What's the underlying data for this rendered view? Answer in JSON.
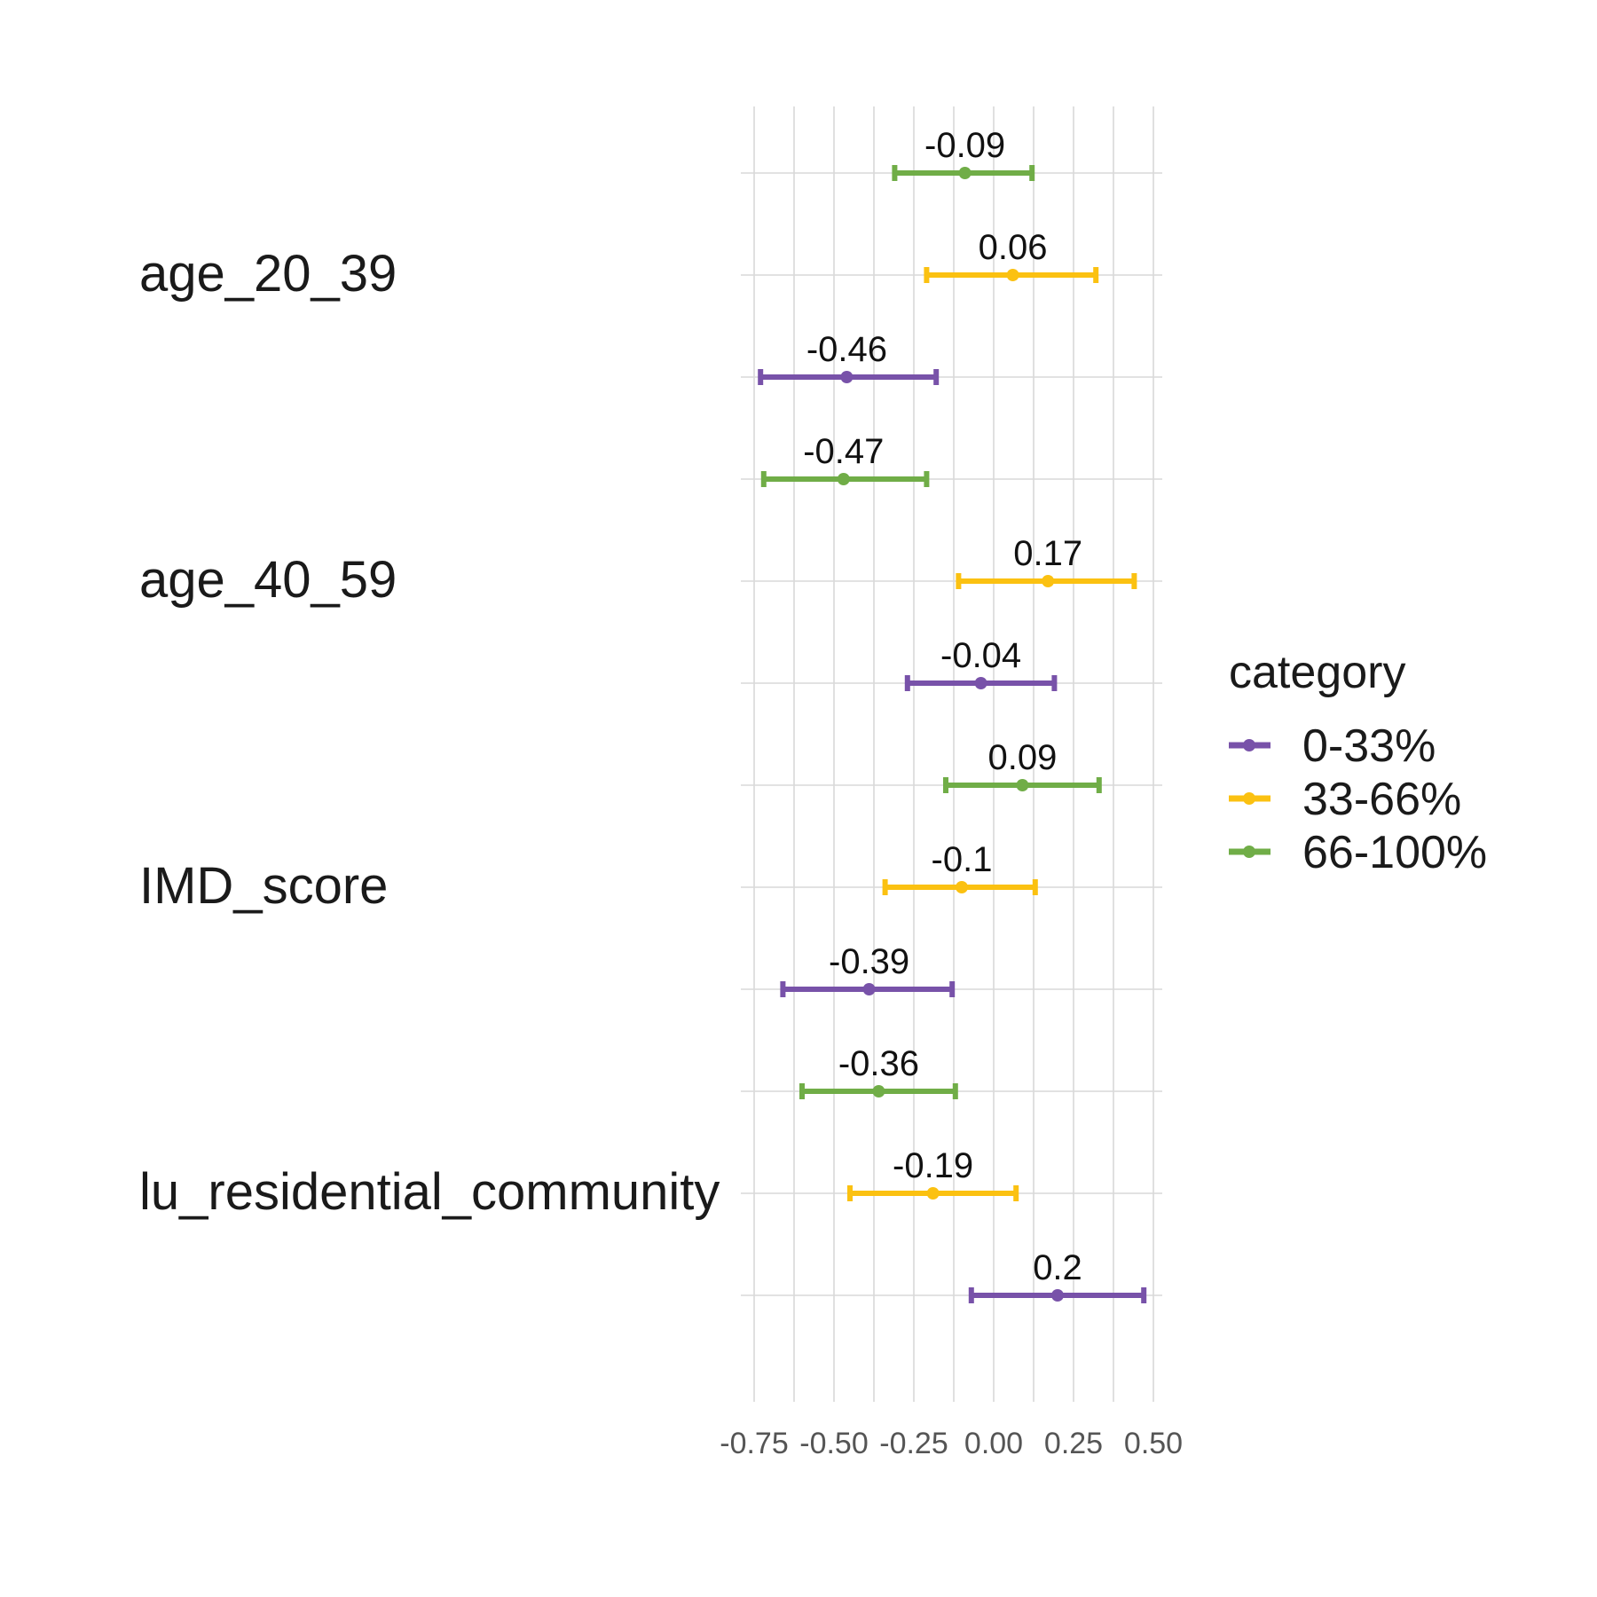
{
  "chart_data": {
    "type": "errorbar",
    "xlim": [
      -0.8,
      0.5
    ],
    "x_ticks": [
      "-0.75",
      "-0.50",
      "-0.25",
      "0.00",
      "0.25",
      "0.50"
    ],
    "x_tick_values": [
      -0.75,
      -0.5,
      -0.25,
      0.0,
      0.25,
      0.5
    ],
    "grid": true,
    "legend_position": "right",
    "legend_title": "category",
    "series": [
      {
        "name": "0-33%",
        "color": "#7852a9"
      },
      {
        "name": "33-66%",
        "color": "#fbc111"
      },
      {
        "name": "66-100%",
        "color": "#70ad47"
      }
    ],
    "variables": [
      {
        "name": "age_20_39",
        "estimates": [
          {
            "category": "66-100%",
            "value": -0.09,
            "label": "-0.09",
            "lower": -0.31,
            "upper": 0.12
          },
          {
            "category": "33-66%",
            "value": 0.06,
            "label": "0.06",
            "lower": -0.21,
            "upper": 0.32
          },
          {
            "category": "0-33%",
            "value": -0.46,
            "label": "-0.46",
            "lower": -0.73,
            "upper": -0.18
          }
        ]
      },
      {
        "name": "age_40_59",
        "estimates": [
          {
            "category": "66-100%",
            "value": -0.47,
            "label": "-0.47",
            "lower": -0.72,
            "upper": -0.21
          },
          {
            "category": "33-66%",
            "value": 0.17,
            "label": "0.17",
            "lower": -0.11,
            "upper": 0.44
          },
          {
            "category": "0-33%",
            "value": -0.04,
            "label": "-0.04",
            "lower": -0.27,
            "upper": 0.19
          }
        ]
      },
      {
        "name": "IMD_score",
        "estimates": [
          {
            "category": "66-100%",
            "value": 0.09,
            "label": "0.09",
            "lower": -0.15,
            "upper": 0.33
          },
          {
            "category": "33-66%",
            "value": -0.1,
            "label": "-0.1",
            "lower": -0.34,
            "upper": 0.13
          },
          {
            "category": "0-33%",
            "value": -0.39,
            "label": "-0.39",
            "lower": -0.66,
            "upper": -0.13
          }
        ]
      },
      {
        "name": "lu_residential_community",
        "estimates": [
          {
            "category": "66-100%",
            "value": -0.36,
            "label": "-0.36",
            "lower": -0.6,
            "upper": -0.12
          },
          {
            "category": "33-66%",
            "value": -0.19,
            "label": "-0.19",
            "lower": -0.45,
            "upper": 0.07
          },
          {
            "category": "0-33%",
            "value": 0.2,
            "label": "0.2",
            "lower": -0.07,
            "upper": 0.47
          }
        ]
      }
    ]
  }
}
